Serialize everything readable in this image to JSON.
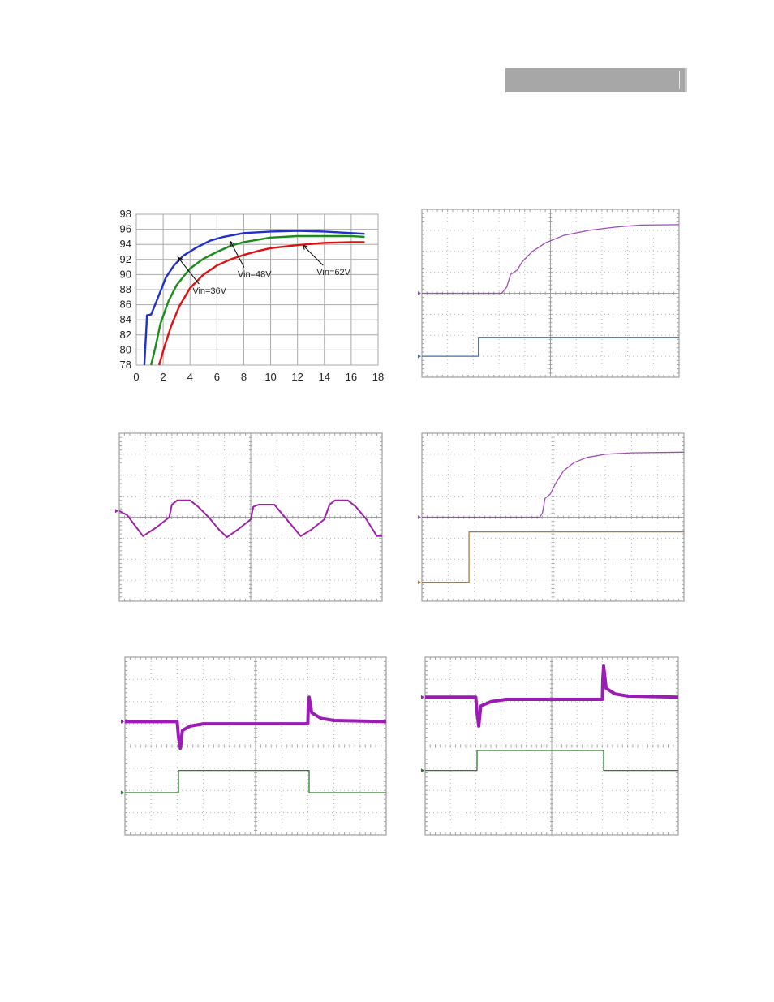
{
  "header": {
    "bar_color": "#a7a7a7"
  },
  "chart_data": [
    {
      "type": "line",
      "xlim": [
        0,
        18
      ],
      "ylim": [
        78,
        98
      ],
      "x_ticks": [
        0,
        2,
        4,
        6,
        8,
        10,
        12,
        14,
        16,
        18
      ],
      "y_ticks": [
        78,
        80,
        82,
        84,
        86,
        88,
        90,
        92,
        94,
        96,
        98
      ],
      "grid": true,
      "series": [
        {
          "name": "Vin=36V",
          "color": "#1f2fd0",
          "points": [
            [
              0.6,
              78
            ],
            [
              0.8,
              84.6
            ],
            [
              1.1,
              84.7
            ],
            [
              1.4,
              86
            ],
            [
              1.8,
              87.8
            ],
            [
              2.2,
              89.6
            ],
            [
              2.8,
              91.2
            ],
            [
              3.5,
              92.5
            ],
            [
              4.5,
              93.6
            ],
            [
              5.5,
              94.5
            ],
            [
              6.5,
              95.0
            ],
            [
              8,
              95.5
            ],
            [
              10,
              95.7
            ],
            [
              12,
              95.8
            ],
            [
              14,
              95.7
            ],
            [
              16,
              95.5
            ],
            [
              17,
              95.4
            ]
          ]
        },
        {
          "name": "Vin=48V",
          "color": "#1a8c1a",
          "points": [
            [
              1.1,
              78
            ],
            [
              1.4,
              80.2
            ],
            [
              1.8,
              83.5
            ],
            [
              2.4,
              86.5
            ],
            [
              3,
              88.6
            ],
            [
              4,
              90.8
            ],
            [
              5,
              92.1
            ],
            [
              6,
              93.0
            ],
            [
              7,
              93.8
            ],
            [
              8,
              94.3
            ],
            [
              10,
              94.9
            ],
            [
              12,
              95.1
            ],
            [
              14,
              95.1
            ],
            [
              16,
              95.1
            ],
            [
              17,
              95.0
            ]
          ]
        },
        {
          "name": "Vin=62V",
          "color": "#e01010",
          "points": [
            [
              1.7,
              78
            ],
            [
              2.1,
              80.5
            ],
            [
              2.6,
              83.2
            ],
            [
              3.2,
              85.8
            ],
            [
              4,
              88.2
            ],
            [
              5,
              90.0
            ],
            [
              6,
              91.2
            ],
            [
              7,
              92.0
            ],
            [
              8,
              92.6
            ],
            [
              9,
              93.1
            ],
            [
              10,
              93.5
            ],
            [
              12,
              93.9
            ],
            [
              14,
              94.2
            ],
            [
              16,
              94.3
            ],
            [
              17,
              94.3
            ]
          ]
        }
      ],
      "annotations": [
        {
          "text": "Vin=36V",
          "series": "Vin=36V",
          "x": 3.1,
          "y": 92.3
        },
        {
          "text": "Vin=48V",
          "series": "Vin=48V",
          "x": 7.0,
          "y": 94.4
        },
        {
          "text": "Vin=62V",
          "series": "Vin=62V",
          "x": 12.4,
          "y": 93.9
        }
      ]
    },
    {
      "type": "line",
      "grid": true,
      "divisions": [
        10,
        8
      ],
      "xlim": [
        0,
        10
      ],
      "ylim": [
        0,
        8
      ],
      "series": [
        {
          "color": "#a24bb8",
          "points": [
            [
              0,
              4.0
            ],
            [
              3.1,
              4.0
            ],
            [
              3.3,
              4.3
            ],
            [
              3.45,
              4.9
            ],
            [
              3.7,
              5.1
            ],
            [
              3.9,
              5.5
            ],
            [
              4.3,
              6.0
            ],
            [
              4.8,
              6.4
            ],
            [
              5.5,
              6.75
            ],
            [
              6.5,
              7.0
            ],
            [
              7.5,
              7.15
            ],
            [
              8.5,
              7.25
            ],
            [
              10,
              7.27
            ]
          ]
        },
        {
          "color": "#3c70b4",
          "points": [
            [
              0,
              1.0
            ],
            [
              2.2,
              1.0
            ],
            [
              2.2,
              1.9
            ],
            [
              10,
              1.9
            ]
          ]
        }
      ]
    },
    {
      "type": "line",
      "grid": true,
      "divisions": [
        10,
        8
      ],
      "xlim": [
        0,
        10
      ],
      "ylim": [
        0,
        8
      ],
      "series": [
        {
          "color": "#a020a8",
          "points": [
            [
              0,
              4.3
            ],
            [
              0.3,
              4.1
            ],
            [
              0.9,
              3.1
            ],
            [
              1.4,
              3.5
            ],
            [
              1.9,
              4.0
            ],
            [
              2.0,
              4.6
            ],
            [
              2.2,
              4.8
            ],
            [
              2.7,
              4.8
            ],
            [
              3.0,
              4.5
            ],
            [
              3.4,
              4.0
            ],
            [
              3.8,
              3.4
            ],
            [
              4.1,
              3.05
            ],
            [
              4.5,
              3.4
            ],
            [
              5.0,
              3.9
            ],
            [
              5.1,
              4.5
            ],
            [
              5.3,
              4.6
            ],
            [
              5.9,
              4.6
            ],
            [
              6.1,
              4.3
            ],
            [
              6.5,
              3.7
            ],
            [
              6.9,
              3.1
            ],
            [
              7.3,
              3.4
            ],
            [
              7.8,
              3.9
            ],
            [
              8.0,
              4.6
            ],
            [
              8.2,
              4.8
            ],
            [
              8.7,
              4.8
            ],
            [
              9.0,
              4.5
            ],
            [
              9.4,
              3.9
            ],
            [
              9.8,
              3.1
            ],
            [
              10,
              3.1
            ]
          ]
        }
      ]
    },
    {
      "type": "line",
      "grid": true,
      "divisions": [
        10,
        8
      ],
      "xlim": [
        0,
        10
      ],
      "ylim": [
        0,
        8
      ],
      "series": [
        {
          "color": "#a24bb8",
          "points": [
            [
              0,
              4.0
            ],
            [
              4.5,
              4.0
            ],
            [
              4.6,
              4.2
            ],
            [
              4.7,
              4.9
            ],
            [
              4.9,
              5.1
            ],
            [
              5.1,
              5.6
            ],
            [
              5.4,
              6.2
            ],
            [
              5.8,
              6.6
            ],
            [
              6.3,
              6.85
            ],
            [
              7.0,
              7.0
            ],
            [
              8.0,
              7.07
            ],
            [
              10,
              7.1
            ]
          ]
        },
        {
          "color": "#b07a3c",
          "points": [
            [
              0,
              0.9
            ],
            [
              1.8,
              0.9
            ],
            [
              1.8,
              3.3
            ],
            [
              10,
              3.3
            ]
          ]
        }
      ]
    },
    {
      "type": "line",
      "grid": true,
      "divisions": [
        10,
        8
      ],
      "xlim": [
        0,
        10
      ],
      "ylim": [
        0,
        8
      ],
      "series": [
        {
          "color": "#9a1cb4",
          "points": [
            [
              0,
              5.1
            ],
            [
              2.0,
              5.1
            ],
            [
              2.05,
              4.4
            ],
            [
              2.12,
              3.9
            ],
            [
              2.2,
              4.7
            ],
            [
              2.5,
              4.9
            ],
            [
              3,
              5.0
            ],
            [
              7.0,
              5.0
            ],
            [
              7.02,
              5.8
            ],
            [
              7.05,
              6.2
            ],
            [
              7.15,
              5.5
            ],
            [
              7.5,
              5.25
            ],
            [
              8,
              5.15
            ],
            [
              10,
              5.1
            ]
          ]
        },
        {
          "color": "#2a7a2a",
          "points": [
            [
              0,
              1.9
            ],
            [
              2.05,
              1.9
            ],
            [
              2.05,
              2.9
            ],
            [
              7.05,
              2.9
            ],
            [
              7.05,
              1.9
            ],
            [
              10,
              1.9
            ]
          ]
        }
      ]
    },
    {
      "type": "line",
      "grid": true,
      "divisions": [
        10,
        8
      ],
      "xlim": [
        0,
        10
      ],
      "ylim": [
        0,
        8
      ],
      "series": [
        {
          "color": "#9a1cb4",
          "points": [
            [
              0,
              6.2
            ],
            [
              2.0,
              6.2
            ],
            [
              2.05,
              5.5
            ],
            [
              2.12,
              4.9
            ],
            [
              2.2,
              5.8
            ],
            [
              2.6,
              6.0
            ],
            [
              3.2,
              6.1
            ],
            [
              7.0,
              6.1
            ],
            [
              7.02,
              7.0
            ],
            [
              7.05,
              7.6
            ],
            [
              7.15,
              6.6
            ],
            [
              7.5,
              6.35
            ],
            [
              8,
              6.25
            ],
            [
              10,
              6.2
            ]
          ]
        },
        {
          "color": "#2a7a2a",
          "points": [
            [
              0,
              2.9
            ],
            [
              2.05,
              2.9
            ],
            [
              2.05,
              3.8
            ],
            [
              7.05,
              3.8
            ],
            [
              7.05,
              2.9
            ],
            [
              10,
              2.9
            ]
          ]
        }
      ]
    }
  ]
}
